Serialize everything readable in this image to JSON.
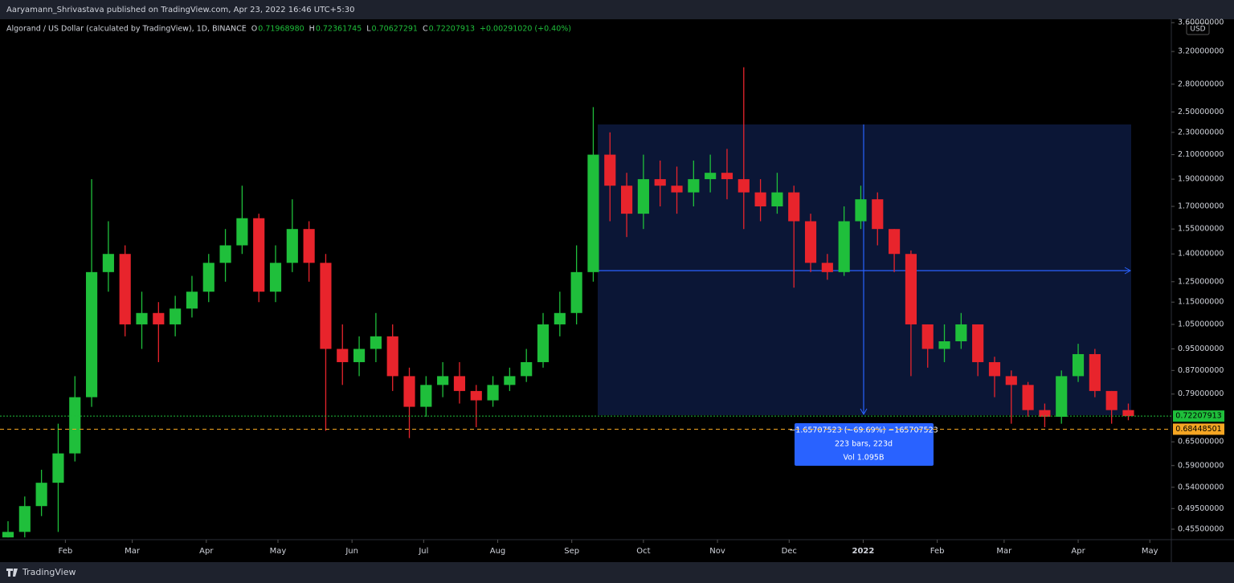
{
  "header": {
    "publisher": "Aaryamann_Shrivastava published on TradingView.com, Apr 23, 2022 16:46 UTC+5:30",
    "footer": "TradingView"
  },
  "chart_data": {
    "type": "candlestick",
    "title": "Algorand / US Dollar (calculated by TradingView), 1D, BINANCE",
    "ohlc": [
      {
        "label": "O",
        "value": "0.71968980"
      },
      {
        "label": "H",
        "value": "0.72361745"
      },
      {
        "label": "L",
        "value": "0.70627291"
      },
      {
        "label": "C",
        "value": "0.72207913"
      }
    ],
    "change": "+0.00291020 (+0.40%)",
    "currency": "USD",
    "log_scale": true,
    "up_color": "#1fbf3b",
    "down_color": "#e8242c",
    "x": [
      0,
      7,
      14,
      21,
      28,
      35,
      42,
      49,
      56,
      63,
      70,
      77,
      84,
      91,
      98,
      105,
      112,
      119,
      126,
      133,
      140,
      147,
      154,
      161,
      168,
      175,
      182,
      189,
      196,
      203,
      210,
      217,
      224,
      231,
      238,
      245,
      252,
      259,
      266,
      273,
      280,
      287,
      294,
      301,
      308,
      315,
      322,
      329,
      336,
      343,
      350,
      357,
      364,
      371,
      378,
      385,
      392,
      399,
      406,
      413,
      420,
      427,
      434,
      441,
      448,
      455,
      462,
      469
    ],
    "open": [
      0.44,
      0.45,
      0.5,
      0.55,
      0.62,
      0.78,
      1.3,
      1.4,
      1.05,
      1.1,
      1.05,
      1.12,
      1.2,
      1.35,
      1.45,
      1.62,
      1.2,
      1.35,
      1.55,
      1.35,
      0.95,
      0.9,
      0.95,
      1.0,
      0.85,
      0.75,
      0.82,
      0.85,
      0.8,
      0.77,
      0.82,
      0.85,
      0.9,
      1.05,
      1.1,
      1.3,
      2.1,
      1.85,
      1.65,
      1.9,
      1.85,
      1.8,
      1.9,
      1.95,
      1.9,
      1.8,
      1.7,
      1.8,
      1.6,
      1.35,
      1.3,
      1.6,
      1.75,
      1.55,
      1.4,
      1.05,
      0.95,
      0.98,
      1.05,
      0.9,
      0.85,
      0.82,
      0.74,
      0.72,
      0.85,
      0.93,
      0.8,
      0.74
    ],
    "high": [
      0.47,
      0.52,
      0.58,
      0.7,
      0.85,
      1.9,
      1.6,
      1.45,
      1.2,
      1.15,
      1.18,
      1.28,
      1.4,
      1.55,
      1.85,
      1.65,
      1.45,
      1.75,
      1.6,
      1.4,
      1.05,
      1.0,
      1.1,
      1.05,
      0.88,
      0.85,
      0.9,
      0.9,
      0.82,
      0.85,
      0.88,
      0.95,
      1.1,
      1.2,
      1.45,
      2.55,
      2.3,
      1.95,
      2.1,
      2.05,
      2.0,
      2.05,
      2.1,
      2.15,
      3.0,
      1.9,
      1.95,
      1.85,
      1.65,
      1.4,
      1.7,
      1.85,
      1.8,
      1.55,
      1.42,
      1.05,
      1.05,
      1.1,
      1.05,
      0.92,
      0.87,
      0.83,
      0.76,
      0.87,
      0.97,
      0.95,
      0.8,
      0.76
    ],
    "low": [
      0.44,
      0.44,
      0.48,
      0.45,
      0.6,
      0.75,
      1.2,
      1.0,
      0.95,
      0.9,
      1.0,
      1.08,
      1.15,
      1.25,
      1.4,
      1.15,
      1.15,
      1.3,
      1.25,
      0.68,
      0.82,
      0.85,
      0.9,
      0.8,
      0.66,
      0.72,
      0.78,
      0.76,
      0.69,
      0.75,
      0.8,
      0.83,
      0.88,
      1.0,
      1.05,
      1.25,
      1.6,
      1.5,
      1.55,
      1.7,
      1.65,
      1.7,
      1.8,
      1.75,
      1.55,
      1.6,
      1.65,
      1.22,
      1.3,
      1.26,
      1.28,
      1.55,
      1.45,
      1.3,
      0.85,
      0.88,
      0.9,
      0.95,
      0.85,
      0.78,
      0.7,
      0.72,
      0.69,
      0.7,
      0.83,
      0.78,
      0.7,
      0.71
    ],
    "close": [
      0.45,
      0.5,
      0.55,
      0.62,
      0.78,
      1.3,
      1.4,
      1.05,
      1.1,
      1.05,
      1.12,
      1.2,
      1.35,
      1.45,
      1.62,
      1.2,
      1.35,
      1.55,
      1.35,
      0.95,
      0.9,
      0.95,
      1.0,
      0.85,
      0.75,
      0.82,
      0.85,
      0.8,
      0.77,
      0.82,
      0.85,
      0.9,
      1.05,
      1.1,
      1.3,
      2.1,
      1.85,
      1.65,
      1.9,
      1.85,
      1.8,
      1.9,
      1.95,
      1.9,
      1.8,
      1.7,
      1.8,
      1.6,
      1.35,
      1.3,
      1.6,
      1.75,
      1.55,
      1.4,
      1.05,
      0.95,
      0.98,
      1.05,
      0.9,
      0.85,
      0.82,
      0.74,
      0.72,
      0.85,
      0.93,
      0.8,
      0.74,
      0.722
    ],
    "xlim": [
      0,
      487
    ],
    "xticks": [
      {
        "value": 24,
        "label": "Feb"
      },
      {
        "value": 52,
        "label": "Mar"
      },
      {
        "value": 83,
        "label": "Apr"
      },
      {
        "value": 113,
        "label": "May"
      },
      {
        "value": 144,
        "label": "Jun"
      },
      {
        "value": 174,
        "label": "Jul"
      },
      {
        "value": 205,
        "label": "Aug"
      },
      {
        "value": 236,
        "label": "Sep"
      },
      {
        "value": 266,
        "label": "Oct"
      },
      {
        "value": 297,
        "label": "Nov"
      },
      {
        "value": 327,
        "label": "Dec"
      },
      {
        "value": 358,
        "label": "2022"
      },
      {
        "value": 389,
        "label": "Feb"
      },
      {
        "value": 417,
        "label": "Mar"
      },
      {
        "value": 448,
        "label": "Apr"
      },
      {
        "value": 478,
        "label": "May"
      }
    ],
    "ylim": [
      0.436,
      3.65
    ],
    "yticks": [
      {
        "value": 0.455,
        "label": "0.45500000"
      },
      {
        "value": 0.495,
        "label": "0.49500000"
      },
      {
        "value": 0.54,
        "label": "0.54000000"
      },
      {
        "value": 0.59,
        "label": "0.59000000"
      },
      {
        "value": 0.65,
        "label": "0.65000000"
      },
      {
        "value": 0.79,
        "label": "0.79000000"
      },
      {
        "value": 0.87,
        "label": "0.87000000"
      },
      {
        "value": 0.95,
        "label": "0.95000000"
      },
      {
        "value": 1.05,
        "label": "1.05000000"
      },
      {
        "value": 1.15,
        "label": "1.15000000"
      },
      {
        "value": 1.25,
        "label": "1.25000000"
      },
      {
        "value": 1.4,
        "label": "1.40000000"
      },
      {
        "value": 1.55,
        "label": "1.55000000"
      },
      {
        "value": 1.7,
        "label": "1.70000000"
      },
      {
        "value": 1.9,
        "label": "1.90000000"
      },
      {
        "value": 2.1,
        "label": "2.10000000"
      },
      {
        "value": 2.3,
        "label": "2.30000000"
      },
      {
        "value": 2.5,
        "label": "2.50000000"
      },
      {
        "value": 2.8,
        "label": "2.80000000"
      },
      {
        "value": 3.2,
        "label": "3.20000000"
      },
      {
        "value": 3.6,
        "label": "3.60000000"
      }
    ],
    "last_price": {
      "value": 0.72207913,
      "color": "#1fbf3b"
    },
    "support_line": {
      "value": 0.68448501,
      "color": "#f5a623"
    },
    "measure": {
      "lines": [
        "−1.65707523 (−69.69%) −165707523",
        "223 bars, 223d",
        "Vol 1.095B"
      ]
    }
  }
}
